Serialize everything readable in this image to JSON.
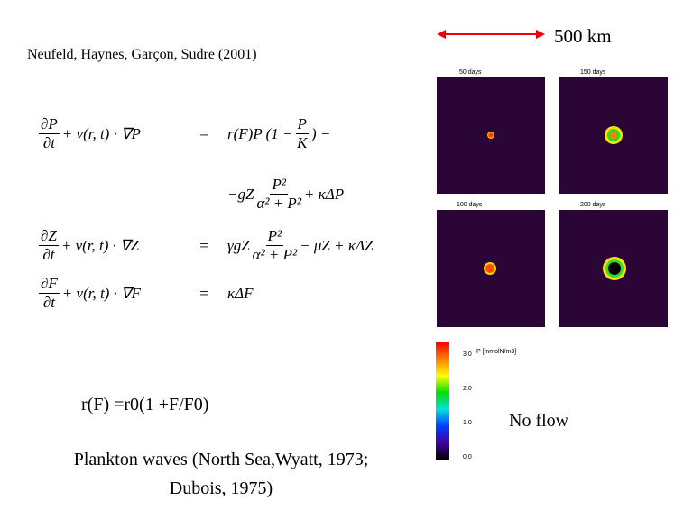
{
  "citation": "Neufeld, Haynes, Garçon, Sudre  (2001)",
  "scale_label": "500 km",
  "equations": [
    {
      "lhs": [
        {
          "num": "∂P",
          "den": "∂t"
        },
        " + v(r, t) · ∇P"
      ],
      "relation": "=",
      "rhs": [
        "r(F)P (1 − ",
        {
          "num": "P",
          "den": "K"
        },
        ") −"
      ]
    },
    {
      "rhs": [
        "−gZ",
        {
          "num": "P²",
          "den": "α² + P²"
        },
        " + κΔP"
      ]
    },
    {
      "lhs": [
        {
          "num": "∂Z",
          "den": "∂t"
        },
        " + v(r, t) · ∇Z"
      ],
      "relation": "=",
      "rhs": [
        "γgZ",
        {
          "num": "P²",
          "den": "α² + P²"
        },
        " − μZ + κΔZ"
      ]
    },
    {
      "lhs": [
        {
          "num": "∂F",
          "den": "∂t"
        },
        " + v(r, t) · ∇F"
      ],
      "relation": "=",
      "rhs": [
        "κΔF"
      ]
    }
  ],
  "growth_formula": "r(F) =r0(1 +F/F0)",
  "caption": [
    "Plankton waves (North Sea,Wyatt, 1973;",
    "Dubois, 1975)"
  ],
  "panels": [
    "50 days",
    "150 days",
    "100 days",
    "200 days"
  ],
  "colorbar": {
    "title": "P [mmolN/m3]",
    "ticks": [
      "3.0",
      "2.0",
      "1.0",
      "0.0"
    ]
  },
  "note": "No flow"
}
